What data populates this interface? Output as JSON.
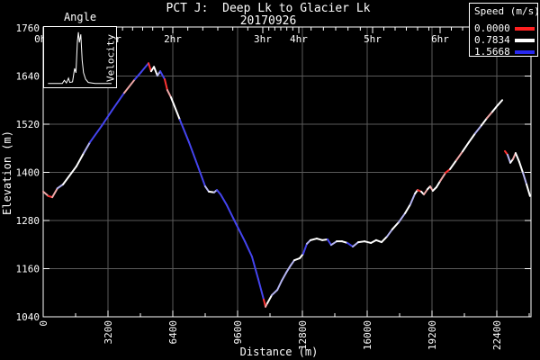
{
  "title": "PCT J:  Deep Lk to Glacier Lk",
  "subtitle": "20170926",
  "axes": {
    "x_label": "Distance (m)",
    "y_label": "Elevation (m)"
  },
  "inset": {
    "title": "Angle",
    "side_label": "Velocity"
  },
  "legend": {
    "title": "Speed (m/s)",
    "entries": [
      {
        "label": "0.0000",
        "color": "#ff2020"
      },
      {
        "label": "0.7834",
        "color": "#ffffff"
      },
      {
        "label": "1.5668",
        "color": "#2828f0"
      }
    ]
  },
  "chart_data": {
    "type": "line",
    "title": "PCT J:  Deep Lk to Glacier Lk 20170926",
    "xlabel": "Distance (m)",
    "ylabel": "Elevation (m)",
    "xlim": [
      0,
      24100
    ],
    "ylim": [
      1040,
      1760
    ],
    "grid": true,
    "legend_position": "top-right",
    "x_ticks": [
      0,
      3200,
      6400,
      9600,
      12800,
      16000,
      19200,
      22400
    ],
    "y_ticks": [
      1040,
      1160,
      1280,
      1400,
      1520,
      1640,
      1760
    ],
    "hour_marks": [
      {
        "label": "0hr",
        "distance_m": 0
      },
      {
        "label": "1hr",
        "distance_m": 3422
      },
      {
        "label": "2hr",
        "distance_m": 6400
      },
      {
        "label": "3hr",
        "distance_m": 10844
      },
      {
        "label": "4hr",
        "distance_m": 12622
      },
      {
        "label": "5hr",
        "distance_m": 16267
      },
      {
        "label": "6hr",
        "distance_m": 19600
      }
    ],
    "speed_color_map": {
      "r": "#ff3333",
      "p": "#f0a8a8",
      "w": "#ffffff",
      "l": "#b4b4f0",
      "b": "#4444ee"
    },
    "speed_scale_m_s": {
      "min": 0.0,
      "mid": 0.7834,
      "max": 1.5668
    },
    "track": [
      [
        0,
        1352,
        "w"
      ],
      [
        250,
        1341,
        "p"
      ],
      [
        450,
        1338,
        "r"
      ],
      [
        700,
        1360,
        "p"
      ],
      [
        980,
        1370,
        "l"
      ],
      [
        1640,
        1415,
        "w"
      ],
      [
        2000,
        1448,
        "w"
      ],
      [
        2310,
        1475,
        "l"
      ],
      [
        2890,
        1516,
        "b"
      ],
      [
        3420,
        1556,
        "b"
      ],
      [
        4000,
        1598,
        "b"
      ],
      [
        4530,
        1632,
        "p"
      ],
      [
        4840,
        1650,
        "b"
      ],
      [
        5200,
        1672,
        "b"
      ],
      [
        5330,
        1652,
        "r"
      ],
      [
        5470,
        1663,
        "w"
      ],
      [
        5640,
        1641,
        "w"
      ],
      [
        5780,
        1652,
        "l"
      ],
      [
        6000,
        1632,
        "b"
      ],
      [
        6130,
        1605,
        "r"
      ],
      [
        6310,
        1587,
        "p"
      ],
      [
        6750,
        1531,
        "w"
      ],
      [
        7200,
        1475,
        "b"
      ],
      [
        7640,
        1415,
        "b"
      ],
      [
        8000,
        1365,
        "b"
      ],
      [
        8180,
        1352,
        "l"
      ],
      [
        8440,
        1350,
        "w"
      ],
      [
        8580,
        1356,
        "l"
      ],
      [
        8760,
        1345,
        "b"
      ],
      [
        9070,
        1318,
        "b"
      ],
      [
        9510,
        1273,
        "b"
      ],
      [
        9960,
        1228,
        "b"
      ],
      [
        10310,
        1190,
        "b"
      ],
      [
        10620,
        1134,
        "b"
      ],
      [
        10890,
        1083,
        "b"
      ],
      [
        10980,
        1065,
        "r"
      ],
      [
        11070,
        1074,
        "p"
      ],
      [
        11290,
        1094,
        "w"
      ],
      [
        11560,
        1107,
        "l"
      ],
      [
        11780,
        1130,
        "l"
      ],
      [
        12000,
        1150,
        "l"
      ],
      [
        12220,
        1168,
        "l"
      ],
      [
        12400,
        1181,
        "l"
      ],
      [
        12670,
        1186,
        "w"
      ],
      [
        12840,
        1197,
        "w"
      ],
      [
        13020,
        1222,
        "b"
      ],
      [
        13200,
        1231,
        "l"
      ],
      [
        13510,
        1235,
        "w"
      ],
      [
        13780,
        1231,
        "w"
      ],
      [
        14040,
        1233,
        "w"
      ],
      [
        14220,
        1219,
        "b"
      ],
      [
        14490,
        1228,
        "l"
      ],
      [
        14760,
        1228,
        "w"
      ],
      [
        15020,
        1224,
        "w"
      ],
      [
        15290,
        1215,
        "b"
      ],
      [
        15560,
        1226,
        "l"
      ],
      [
        15870,
        1228,
        "w"
      ],
      [
        16180,
        1224,
        "w"
      ],
      [
        16440,
        1231,
        "w"
      ],
      [
        16710,
        1226,
        "w"
      ],
      [
        16980,
        1240,
        "w"
      ],
      [
        17240,
        1258,
        "l"
      ],
      [
        17560,
        1276,
        "w"
      ],
      [
        17870,
        1298,
        "l"
      ],
      [
        18130,
        1320,
        "w"
      ],
      [
        18360,
        1347,
        "l"
      ],
      [
        18490,
        1356,
        "w"
      ],
      [
        18670,
        1352,
        "r"
      ],
      [
        18800,
        1345,
        "w"
      ],
      [
        18980,
        1358,
        "p"
      ],
      [
        19110,
        1365,
        "w"
      ],
      [
        19240,
        1354,
        "p"
      ],
      [
        19420,
        1363,
        "w"
      ],
      [
        19600,
        1378,
        "w"
      ],
      [
        19870,
        1399,
        "p"
      ],
      [
        20090,
        1408,
        "r"
      ],
      [
        20400,
        1430,
        "w"
      ],
      [
        20710,
        1452,
        "p"
      ],
      [
        21020,
        1475,
        "w"
      ],
      [
        21330,
        1497,
        "w"
      ],
      [
        21640,
        1517,
        "l"
      ],
      [
        21910,
        1535,
        "w"
      ],
      [
        22180,
        1551,
        "p"
      ],
      [
        22440,
        1567,
        "w"
      ],
      [
        22670,
        1580,
        "w"
      ]
    ],
    "track2": [
      [
        22800,
        1453,
        "r"
      ],
      [
        22930,
        1444,
        "r"
      ],
      [
        23070,
        1424,
        "l"
      ],
      [
        23200,
        1433,
        "w"
      ],
      [
        23330,
        1448,
        "p"
      ],
      [
        23510,
        1426,
        "w"
      ],
      [
        23690,
        1399,
        "w"
      ],
      [
        23870,
        1370,
        "l"
      ],
      [
        24040,
        1341,
        "w"
      ]
    ],
    "angle_inset_curve": [
      [
        0.03,
        0.02
      ],
      [
        0.24,
        0.02
      ],
      [
        0.27,
        0.08
      ],
      [
        0.3,
        0.03
      ],
      [
        0.33,
        0.12
      ],
      [
        0.35,
        0.04
      ],
      [
        0.39,
        0.05
      ],
      [
        0.42,
        0.3
      ],
      [
        0.44,
        0.22
      ],
      [
        0.46,
        0.8
      ],
      [
        0.475,
        0.97
      ],
      [
        0.49,
        0.78
      ],
      [
        0.51,
        0.93
      ],
      [
        0.53,
        0.45
      ],
      [
        0.55,
        0.22
      ],
      [
        0.58,
        0.1
      ],
      [
        0.62,
        0.04
      ],
      [
        0.72,
        0.02
      ],
      [
        0.96,
        0.02
      ]
    ]
  }
}
